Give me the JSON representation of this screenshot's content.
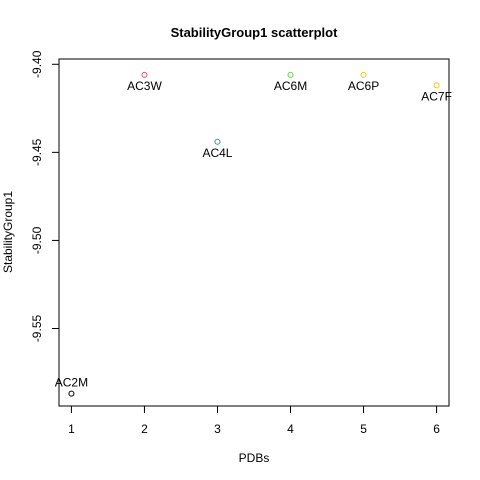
{
  "chart_data": {
    "type": "scatter",
    "title": "StabilityGroup1 scatterplot",
    "xlabel": "PDBs",
    "ylabel": "StabilityGroup1",
    "xlim": [
      0.83,
      6.17
    ],
    "ylim": [
      -9.594,
      -9.397
    ],
    "xticks": [
      1,
      2,
      3,
      4,
      5,
      6
    ],
    "yticks": [
      -9.4,
      -9.45,
      -9.5,
      -9.55
    ],
    "xtick_labels": [
      "1",
      "2",
      "3",
      "4",
      "5",
      "6"
    ],
    "ytick_labels": [
      "-9.40",
      "-9.45",
      "-9.50",
      "-9.55"
    ],
    "grid": false,
    "legend": "none",
    "points": [
      {
        "x": 1,
        "y": -9.587,
        "label": "AC2M",
        "color": "#000000"
      },
      {
        "x": 2,
        "y": -9.406,
        "label": "AC3W",
        "color": "#DF536B"
      },
      {
        "x": 3,
        "y": -9.444,
        "label": "AC4L",
        "color": "#2297E6"
      },
      {
        "x": 4,
        "y": -9.406,
        "label": "AC6M",
        "color": "#61D04F"
      },
      {
        "x": 5,
        "y": -9.406,
        "label": "AC6P",
        "color": "#F5C710"
      },
      {
        "x": 6,
        "y": -9.412,
        "label": "AC7F",
        "color": "#F5C710"
      }
    ]
  }
}
